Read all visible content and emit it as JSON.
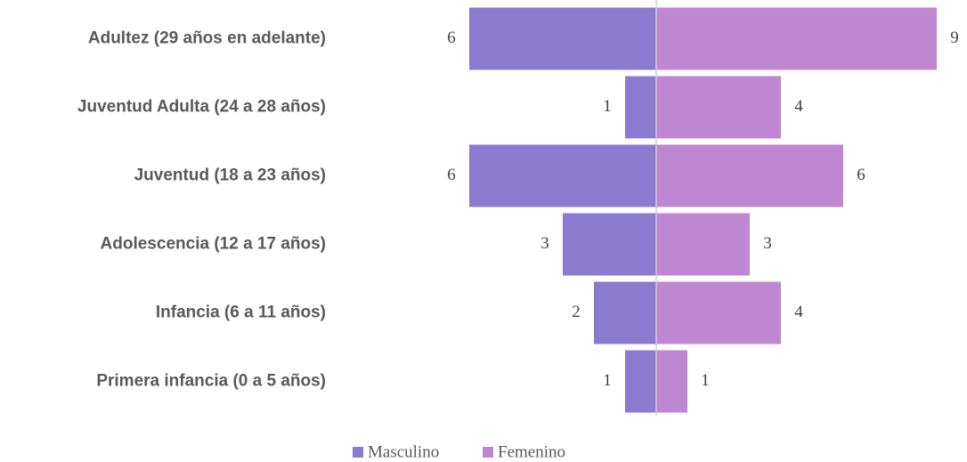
{
  "chart_data": {
    "type": "bar",
    "categories": [
      "Adultez (29 años en adelante)",
      "Juventud Adulta (24 a 28 años)",
      "Juventud (18 a 23 años)",
      "Adolescencia (12 a 17 años)",
      "Infancia (6 a 11 años)",
      "Primera infancia (0 a 5 años)"
    ],
    "series": [
      {
        "name": "Masculino",
        "color": "#8b7bd0",
        "values": [
          6,
          1,
          6,
          3,
          2,
          1
        ]
      },
      {
        "name": "Femenino",
        "color": "#bf86d2",
        "values": [
          9,
          4,
          6,
          3,
          4,
          1
        ]
      }
    ]
  }
}
